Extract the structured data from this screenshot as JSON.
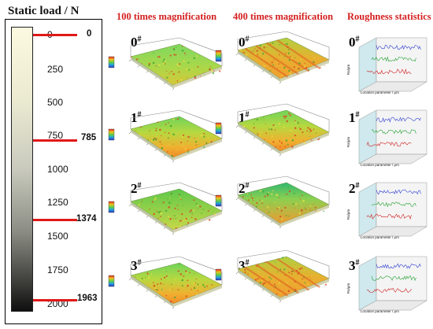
{
  "header": {
    "load_title": "Static load / N",
    "col1": "100 times magnification",
    "col2": "400 times magnification",
    "col3": "Roughness statistics"
  },
  "scale_ticks": [
    "0",
    "250",
    "500",
    "750",
    "1000",
    "1250",
    "1500",
    "1750",
    "2000"
  ],
  "load_markers": [
    "0",
    "785",
    "1374",
    "1963"
  ],
  "rows": [
    {
      "label": "0",
      "sup": "#"
    },
    {
      "label": "1",
      "sup": "#"
    },
    {
      "label": "2",
      "sup": "#"
    },
    {
      "label": "3",
      "sup": "#"
    }
  ],
  "roughness_axis": {
    "xlabel": "Location parameter / μm",
    "ylabel": "Ra/μm"
  },
  "colors": {
    "accent_red": "#d42020",
    "marker_line": "#e01818",
    "surface_green": "#5ec84a",
    "surface_orange": "#f0a030"
  }
}
